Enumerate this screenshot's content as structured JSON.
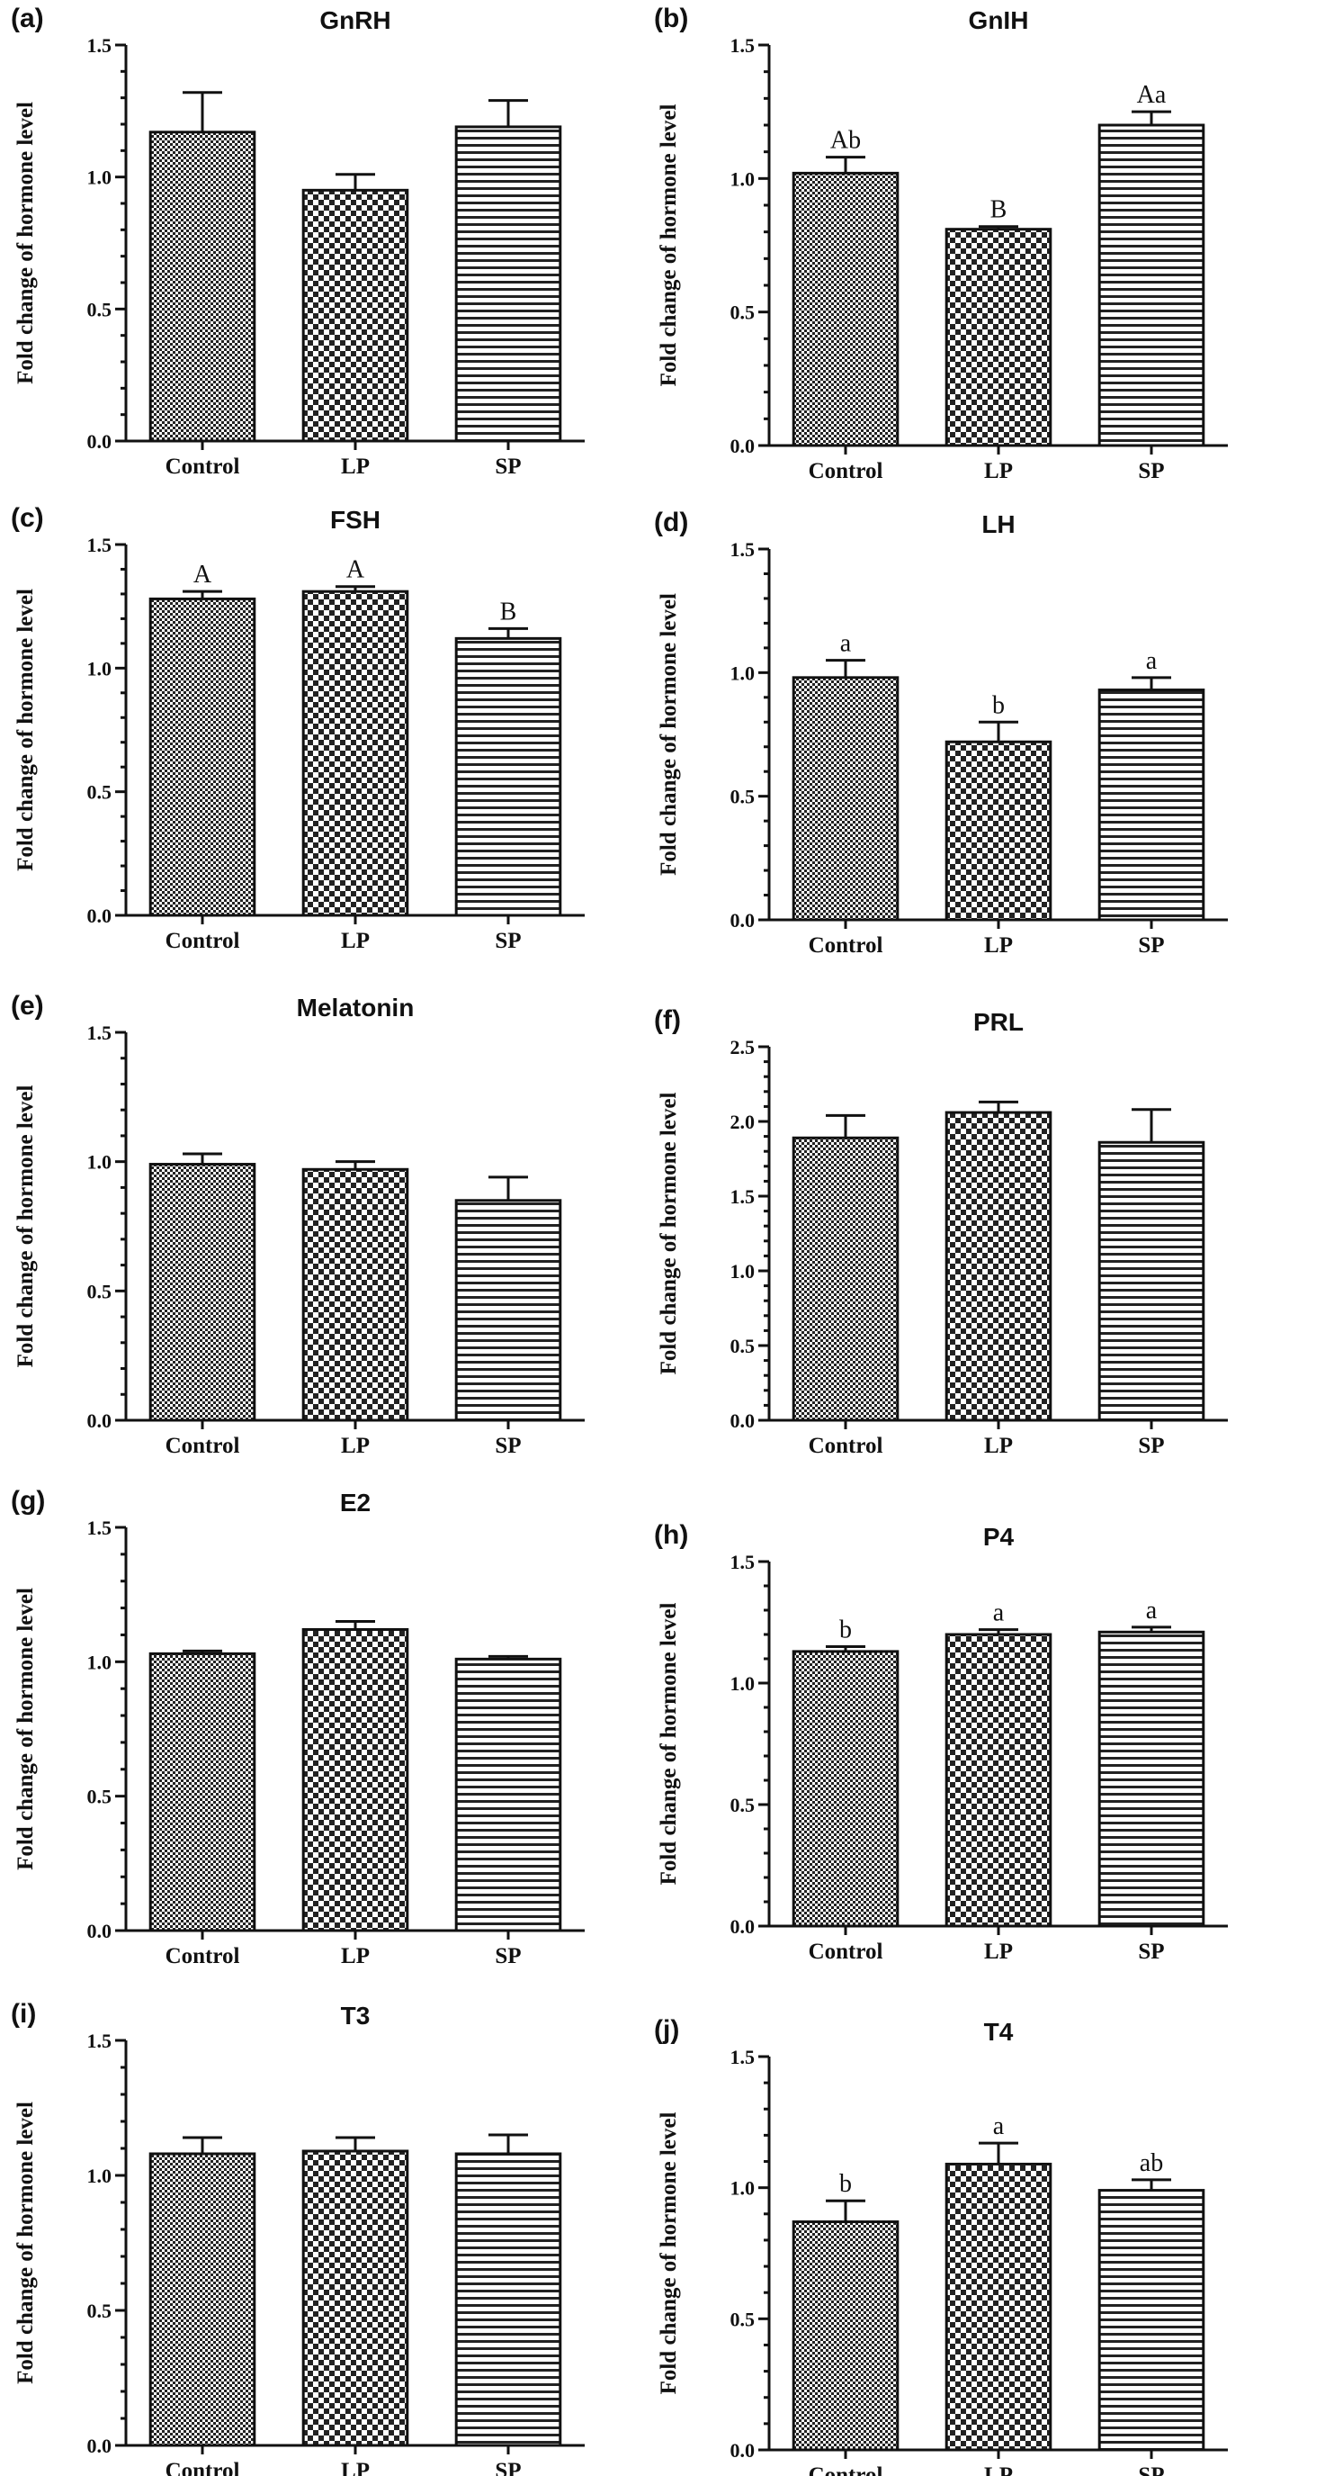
{
  "y_axis_label": "Fold change of hormone level",
  "chart_data": [
    {
      "letter": "(a)",
      "title": "GnRH",
      "type": "bar",
      "categories": [
        "Control",
        "LP",
        "SP"
      ],
      "values": [
        1.17,
        0.95,
        1.19
      ],
      "errors": [
        0.15,
        0.06,
        0.1
      ],
      "labels": [
        "",
        "",
        ""
      ],
      "ylim": [
        0,
        1.5
      ],
      "yticks": [
        "0.0",
        "0.5",
        "1.0",
        "1.5"
      ]
    },
    {
      "letter": "(b)",
      "title": "GnIH",
      "type": "bar",
      "categories": [
        "Control",
        "LP",
        "SP"
      ],
      "values": [
        1.02,
        0.81,
        1.2
      ],
      "errors": [
        0.06,
        0.01,
        0.05
      ],
      "labels": [
        "Ab",
        "B",
        "Aa"
      ],
      "ylim": [
        0,
        1.5
      ],
      "yticks": [
        "0.0",
        "0.5",
        "1.0",
        "1.5"
      ]
    },
    {
      "letter": "(c)",
      "title": "FSH",
      "type": "bar",
      "categories": [
        "Control",
        "LP",
        "SP"
      ],
      "values": [
        1.28,
        1.31,
        1.12
      ],
      "errors": [
        0.03,
        0.02,
        0.04
      ],
      "labels": [
        "A",
        "A",
        "B"
      ],
      "ylim": [
        0,
        1.5
      ],
      "yticks": [
        "0.0",
        "0.5",
        "1.0",
        "1.5"
      ]
    },
    {
      "letter": "(d)",
      "title": "LH",
      "type": "bar",
      "categories": [
        "Control",
        "LP",
        "SP"
      ],
      "values": [
        0.98,
        0.72,
        0.93
      ],
      "errors": [
        0.07,
        0.08,
        0.05
      ],
      "labels": [
        "a",
        "b",
        "a"
      ],
      "ylim": [
        0,
        1.5
      ],
      "yticks": [
        "0.0",
        "0.5",
        "1.0",
        "1.5"
      ]
    },
    {
      "letter": "(e)",
      "title": "Melatonin",
      "type": "bar",
      "categories": [
        "Control",
        "LP",
        "SP"
      ],
      "values": [
        0.99,
        0.97,
        0.85
      ],
      "errors": [
        0.04,
        0.03,
        0.09
      ],
      "labels": [
        "",
        "",
        ""
      ],
      "ylim": [
        0,
        1.5
      ],
      "yticks": [
        "0.0",
        "0.5",
        "1.0",
        "1.5"
      ]
    },
    {
      "letter": "(f)",
      "title": "PRL",
      "type": "bar",
      "categories": [
        "Control",
        "LP",
        "SP"
      ],
      "values": [
        1.89,
        2.06,
        1.86
      ],
      "errors": [
        0.15,
        0.07,
        0.22
      ],
      "labels": [
        "",
        "",
        ""
      ],
      "ylim": [
        0,
        2.5
      ],
      "yticks": [
        "0.0",
        "0.5",
        "1.0",
        "1.5",
        "2.0",
        "2.5"
      ]
    },
    {
      "letter": "(g)",
      "title": "E2",
      "type": "bar",
      "categories": [
        "Control",
        "LP",
        "SP"
      ],
      "values": [
        1.03,
        1.12,
        1.01
      ],
      "errors": [
        0.01,
        0.03,
        0.01
      ],
      "labels": [
        "",
        "",
        ""
      ],
      "ylim": [
        0,
        1.5
      ],
      "yticks": [
        "0.0",
        "0.5",
        "1.0",
        "1.5"
      ]
    },
    {
      "letter": "(h)",
      "title": "P4",
      "type": "bar",
      "categories": [
        "Control",
        "LP",
        "SP"
      ],
      "values": [
        1.13,
        1.2,
        1.21
      ],
      "errors": [
        0.02,
        0.02,
        0.02
      ],
      "labels": [
        "b",
        "a",
        "a"
      ],
      "ylim": [
        0,
        1.5
      ],
      "yticks": [
        "0.0",
        "0.5",
        "1.0",
        "1.5"
      ]
    },
    {
      "letter": "(i)",
      "title": "T3",
      "type": "bar",
      "categories": [
        "Control",
        "LP",
        "SP"
      ],
      "values": [
        1.08,
        1.09,
        1.08
      ],
      "errors": [
        0.06,
        0.05,
        0.07
      ],
      "labels": [
        "",
        "",
        ""
      ],
      "ylim": [
        0,
        1.5
      ],
      "yticks": [
        "0.0",
        "0.5",
        "1.0",
        "1.5"
      ]
    },
    {
      "letter": "(j)",
      "title": "T4",
      "type": "bar",
      "categories": [
        "Control",
        "LP",
        "SP"
      ],
      "values": [
        0.87,
        1.09,
        0.99
      ],
      "errors": [
        0.08,
        0.08,
        0.04
      ],
      "labels": [
        "b",
        "a",
        "ab"
      ],
      "ylim": [
        0,
        1.5
      ],
      "yticks": [
        "0.0",
        "0.5",
        "1.0",
        "1.5"
      ]
    }
  ]
}
